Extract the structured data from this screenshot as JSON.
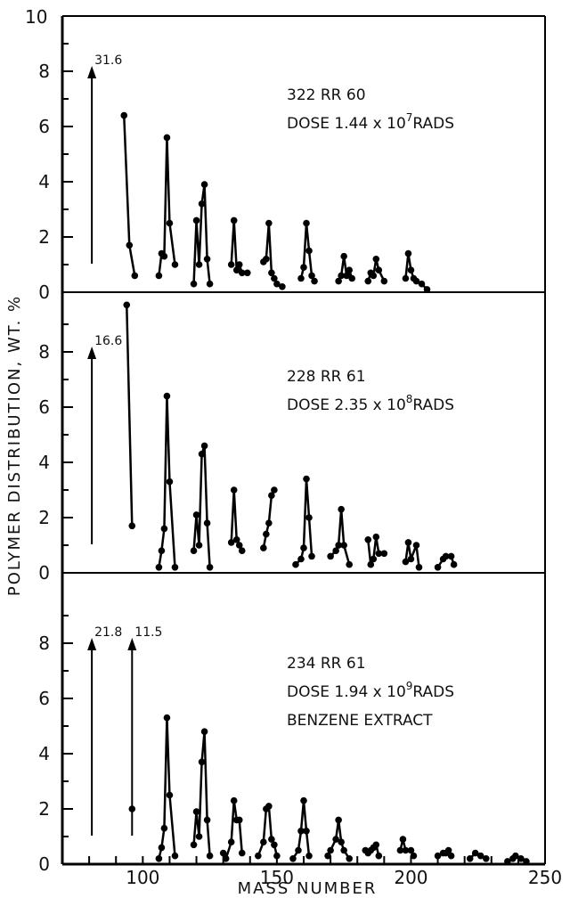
{
  "figure": {
    "ylabel": "POLYMER DISTRIBUTION, WT. %",
    "xlabel": "MASS NUMBER",
    "x_ticks": [
      "100",
      "150",
      "200",
      "250"
    ],
    "y_top_label": "10"
  },
  "chart_data": [
    {
      "type": "line",
      "title": "322 RR 60",
      "subtitle": "DOSE 1.44 x 10^7 RADS",
      "annotation_lines": [
        "322 RR 60",
        "DOSE 1.44 x 10",
        "7",
        "RADS"
      ],
      "xlim": [
        70,
        250
      ],
      "ylim": [
        0,
        10
      ],
      "y_ticks": [
        "0",
        "2",
        "4",
        "6",
        "8"
      ],
      "offscale": [
        {
          "x": 81,
          "value": 31.6,
          "label": "31.6"
        }
      ],
      "groups": [
        [
          [
            93,
            6.4
          ],
          [
            95,
            1.7
          ],
          [
            97,
            0.6
          ]
        ],
        [
          [
            106,
            0.6
          ],
          [
            107,
            1.4
          ],
          [
            108,
            1.3
          ],
          [
            109,
            5.6
          ],
          [
            110,
            2.5
          ],
          [
            112,
            1.0
          ]
        ],
        [
          [
            119,
            0.3
          ],
          [
            120,
            2.6
          ],
          [
            121,
            1.0
          ],
          [
            122,
            3.2
          ],
          [
            123,
            3.9
          ],
          [
            124,
            1.2
          ],
          [
            125,
            0.3
          ]
        ],
        [
          [
            133,
            1.0
          ],
          [
            134,
            2.6
          ],
          [
            135,
            0.8
          ],
          [
            136,
            1.0
          ],
          [
            137,
            0.7
          ],
          [
            139,
            0.7
          ]
        ],
        [
          [
            145,
            1.1
          ],
          [
            146,
            1.2
          ],
          [
            147,
            2.5
          ],
          [
            148,
            0.7
          ],
          [
            149,
            0.5
          ],
          [
            150,
            0.3
          ],
          [
            152,
            0.2
          ]
        ],
        [
          [
            159,
            0.5
          ],
          [
            160,
            0.9
          ],
          [
            161,
            2.5
          ],
          [
            162,
            1.5
          ],
          [
            163,
            0.6
          ],
          [
            164,
            0.4
          ]
        ],
        [
          [
            173,
            0.4
          ],
          [
            174,
            0.6
          ],
          [
            175,
            1.3
          ],
          [
            176,
            0.6
          ],
          [
            177,
            0.8
          ],
          [
            178,
            0.5
          ]
        ],
        [
          [
            184,
            0.4
          ],
          [
            185,
            0.7
          ],
          [
            186,
            0.6
          ],
          [
            187,
            1.2
          ],
          [
            188,
            0.8
          ],
          [
            190,
            0.4
          ]
        ],
        [
          [
            198,
            0.5
          ],
          [
            199,
            1.4
          ],
          [
            200,
            0.8
          ],
          [
            201,
            0.5
          ],
          [
            202,
            0.4
          ],
          [
            204,
            0.3
          ],
          [
            206,
            0.1
          ]
        ]
      ]
    },
    {
      "type": "line",
      "title": "228 RR 61",
      "subtitle": "DOSE 2.35 x 10^8 RADS",
      "annotation_lines": [
        "228 RR 61",
        "DOSE 2.35 x 10",
        "8",
        "RADS"
      ],
      "xlim": [
        70,
        250
      ],
      "ylim": [
        0,
        10
      ],
      "y_ticks": [
        "0",
        "2",
        "4",
        "6",
        "8"
      ],
      "offscale": [
        {
          "x": 81,
          "value": 16.6,
          "label": "16.6"
        }
      ],
      "groups": [
        [
          [
            94,
            9.7
          ],
          [
            96,
            1.7
          ]
        ],
        [
          [
            106,
            0.2
          ],
          [
            107,
            0.8
          ],
          [
            108,
            1.6
          ],
          [
            109,
            6.4
          ],
          [
            110,
            3.3
          ],
          [
            112,
            0.2
          ]
        ],
        [
          [
            119,
            0.8
          ],
          [
            120,
            2.1
          ],
          [
            121,
            1.0
          ],
          [
            122,
            4.3
          ],
          [
            123,
            4.6
          ],
          [
            124,
            1.8
          ],
          [
            125,
            0.2
          ]
        ],
        [
          [
            133,
            1.1
          ],
          [
            134,
            3.0
          ],
          [
            135,
            1.2
          ],
          [
            136,
            1.0
          ],
          [
            137,
            0.8
          ]
        ],
        [
          [
            145,
            0.9
          ],
          [
            146,
            1.4
          ],
          [
            147,
            1.8
          ],
          [
            148,
            2.8
          ],
          [
            149,
            3.0
          ]
        ],
        [
          [
            157,
            0.3
          ],
          [
            159,
            0.5
          ],
          [
            160,
            0.9
          ],
          [
            161,
            3.4
          ],
          [
            162,
            2.0
          ],
          [
            163,
            0.6
          ]
        ],
        [
          [
            170,
            0.6
          ],
          [
            172,
            0.8
          ],
          [
            173,
            1.0
          ],
          [
            174,
            2.3
          ],
          [
            175,
            1.0
          ],
          [
            177,
            0.3
          ]
        ],
        [
          [
            184,
            1.2
          ],
          [
            185,
            0.3
          ],
          [
            186,
            0.5
          ],
          [
            187,
            1.3
          ],
          [
            188,
            0.7
          ],
          [
            190,
            0.7
          ]
        ],
        [
          [
            198,
            0.4
          ],
          [
            199,
            1.1
          ],
          [
            200,
            0.5
          ],
          [
            202,
            1.0
          ],
          [
            203,
            0.2
          ]
        ],
        [
          [
            210,
            0.2
          ],
          [
            212,
            0.5
          ],
          [
            213,
            0.6
          ],
          [
            215,
            0.6
          ],
          [
            216,
            0.3
          ]
        ]
      ]
    },
    {
      "type": "line",
      "title": "234 RR 61",
      "subtitle": "DOSE 1.94 x 10^9 RADS",
      "extra_line": "BENZENE EXTRACT",
      "annotation_lines": [
        "234 RR 61",
        "DOSE 1.94 x 10",
        "9",
        "RADS",
        "BENZENE EXTRACT"
      ],
      "xlim": [
        70,
        250
      ],
      "ylim": [
        0,
        10
      ],
      "y_ticks": [
        "0",
        "2",
        "4",
        "6",
        "8"
      ],
      "offscale": [
        {
          "x": 81,
          "value": 21.8,
          "label": "21.8"
        },
        {
          "x": 96,
          "value": 11.5,
          "label": "11.5"
        }
      ],
      "groups": [
        [
          [
            96,
            2.0
          ]
        ],
        [
          [
            106,
            0.2
          ],
          [
            107,
            0.6
          ],
          [
            108,
            1.3
          ],
          [
            109,
            5.3
          ],
          [
            110,
            2.5
          ],
          [
            112,
            0.3
          ]
        ],
        [
          [
            119,
            0.7
          ],
          [
            120,
            1.9
          ],
          [
            121,
            1.0
          ],
          [
            122,
            3.7
          ],
          [
            123,
            4.8
          ],
          [
            124,
            1.6
          ],
          [
            125,
            0.3
          ]
        ],
        [
          [
            130,
            0.4
          ],
          [
            131,
            0.2
          ],
          [
            133,
            0.8
          ],
          [
            134,
            2.3
          ],
          [
            135,
            1.6
          ],
          [
            136,
            1.6
          ],
          [
            137,
            0.4
          ]
        ],
        [
          [
            143,
            0.3
          ],
          [
            145,
            0.8
          ],
          [
            146,
            2.0
          ],
          [
            147,
            2.1
          ],
          [
            148,
            0.9
          ],
          [
            149,
            0.7
          ],
          [
            150,
            0.3
          ]
        ],
        [
          [
            156,
            0.2
          ],
          [
            158,
            0.5
          ],
          [
            159,
            1.2
          ],
          [
            160,
            2.3
          ],
          [
            161,
            1.2
          ],
          [
            162,
            0.3
          ]
        ],
        [
          [
            169,
            0.3
          ],
          [
            170,
            0.5
          ],
          [
            172,
            0.9
          ],
          [
            173,
            1.6
          ],
          [
            174,
            0.8
          ],
          [
            175,
            0.5
          ],
          [
            177,
            0.2
          ]
        ],
        [
          [
            183,
            0.5
          ],
          [
            184,
            0.4
          ],
          [
            185,
            0.5
          ],
          [
            186,
            0.6
          ],
          [
            187,
            0.7
          ],
          [
            188,
            0.3
          ]
        ],
        [
          [
            196,
            0.5
          ],
          [
            197,
            0.9
          ],
          [
            198,
            0.5
          ],
          [
            200,
            0.5
          ],
          [
            201,
            0.3
          ]
        ],
        [
          [
            210,
            0.3
          ],
          [
            212,
            0.4
          ],
          [
            213,
            0.4
          ],
          [
            214,
            0.5
          ],
          [
            215,
            0.3
          ]
        ],
        [
          [
            222,
            0.2
          ],
          [
            224,
            0.4
          ],
          [
            226,
            0.3
          ],
          [
            228,
            0.2
          ]
        ],
        [
          [
            236,
            0.1
          ],
          [
            238,
            0.2
          ],
          [
            239,
            0.3
          ],
          [
            241,
            0.2
          ],
          [
            243,
            0.1
          ]
        ]
      ]
    }
  ]
}
